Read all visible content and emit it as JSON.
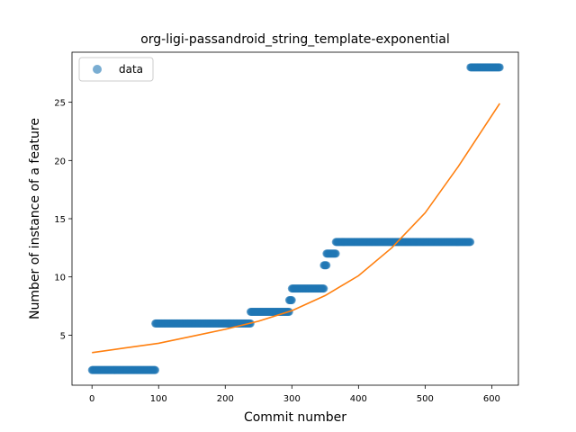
{
  "chart_data": {
    "type": "scatter",
    "title": "org-ligi-passandroid_string_template-exponential",
    "xlabel": "Commit number",
    "ylabel": "Number of instance of a feature",
    "xlim": [
      -30,
      640
    ],
    "ylim": [
      0.7,
      29.3
    ],
    "xticks": [
      0,
      100,
      200,
      300,
      400,
      500,
      600
    ],
    "yticks": [
      5,
      10,
      15,
      20,
      25
    ],
    "grid": false,
    "legend": {
      "position": "top-left",
      "entries": [
        "data"
      ]
    },
    "colors": {
      "data": "#1f77b4",
      "fit": "#ff7f0e"
    },
    "series": [
      {
        "name": "data",
        "kind": "points",
        "segments": [
          {
            "x_start": 0,
            "x_end": 95,
            "y": 2
          },
          {
            "x_start": 95,
            "x_end": 238,
            "y": 6
          },
          {
            "x_start": 238,
            "x_end": 296,
            "y": 7
          },
          {
            "x_start": 296,
            "x_end": 300,
            "y": 8
          },
          {
            "x_start": 300,
            "x_end": 348,
            "y": 9
          },
          {
            "x_start": 348,
            "x_end": 352,
            "y": 11
          },
          {
            "x_start": 352,
            "x_end": 366,
            "y": 12
          },
          {
            "x_start": 366,
            "x_end": 568,
            "y": 13
          },
          {
            "x_start": 568,
            "x_end": 612,
            "y": 28
          }
        ]
      },
      {
        "kind": "line",
        "x": [
          0,
          50,
          100,
          150,
          200,
          250,
          300,
          350,
          400,
          450,
          500,
          550,
          612
        ],
        "y": [
          3.5,
          3.9,
          4.3,
          4.9,
          5.5,
          6.2,
          7.1,
          8.4,
          10.1,
          12.5,
          15.5,
          19.5,
          24.9
        ]
      }
    ]
  }
}
